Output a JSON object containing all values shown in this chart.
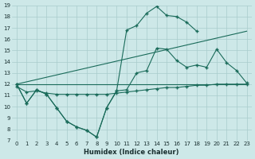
{
  "background_color": "#cde8e8",
  "grid_color": "#a8cccc",
  "line_color": "#1a6b5a",
  "x_min": 0,
  "x_max": 23,
  "y_min": 7,
  "y_max": 19,
  "xlabel": "Humidex (Indice chaleur)",
  "x_ticks": [
    0,
    1,
    2,
    3,
    4,
    5,
    6,
    7,
    8,
    9,
    10,
    11,
    12,
    13,
    14,
    15,
    16,
    17,
    18,
    19,
    20,
    21,
    22,
    23
  ],
  "y_ticks": [
    7,
    8,
    9,
    10,
    11,
    12,
    13,
    14,
    15,
    16,
    17,
    18,
    19
  ],
  "zigzag_line": {
    "x": [
      0,
      1,
      2,
      3,
      4,
      5,
      6,
      7,
      8,
      9
    ],
    "y": [
      12,
      10.3,
      11.5,
      11.1,
      9.9,
      8.7,
      8.2,
      7.9,
      7.3,
      9.9
    ]
  },
  "top_line": {
    "x": [
      0,
      1,
      2,
      3,
      4,
      5,
      6,
      7,
      8,
      9,
      10,
      11,
      12,
      13,
      14,
      15,
      16,
      17,
      18,
      19,
      20
    ],
    "y": [
      12,
      10.3,
      11.5,
      11.1,
      9.9,
      8.7,
      8.2,
      7.9,
      7.3,
      9.9,
      11.4,
      16.8,
      17.2,
      18.3,
      18.9,
      18.1,
      18.0,
      17.5,
      16.7,
      null,
      null
    ]
  },
  "mid_line": {
    "x": [
      0,
      1,
      2,
      3,
      4,
      5,
      6,
      7,
      8,
      9,
      10,
      11,
      12,
      13,
      14,
      15,
      16,
      17,
      18,
      19,
      20,
      21,
      22,
      23
    ],
    "y": [
      12,
      10.3,
      11.5,
      11.1,
      9.9,
      8.7,
      8.2,
      7.9,
      7.3,
      9.9,
      11.4,
      11.5,
      13.0,
      13.2,
      15.2,
      15.1,
      14.1,
      13.5,
      13.7,
      13.5,
      15.1,
      13.9,
      13.2,
      12.1
    ]
  },
  "flat_line": {
    "x": [
      0,
      1,
      2,
      3,
      4,
      5,
      6,
      7,
      8,
      9,
      10,
      11,
      12,
      13,
      14,
      15,
      16,
      17,
      18,
      19,
      20,
      21,
      22,
      23
    ],
    "y": [
      11.8,
      11.3,
      11.4,
      11.2,
      11.1,
      11.1,
      11.1,
      11.1,
      11.1,
      11.1,
      11.2,
      11.3,
      11.4,
      11.5,
      11.6,
      11.7,
      11.7,
      11.8,
      11.9,
      11.9,
      12.0,
      12.0,
      12.0,
      12.0
    ]
  },
  "diag_high": {
    "x": [
      0,
      23
    ],
    "y": [
      12,
      16.7
    ]
  },
  "diag_low": {
    "x": [
      0,
      23
    ],
    "y": [
      12,
      12.0
    ]
  }
}
